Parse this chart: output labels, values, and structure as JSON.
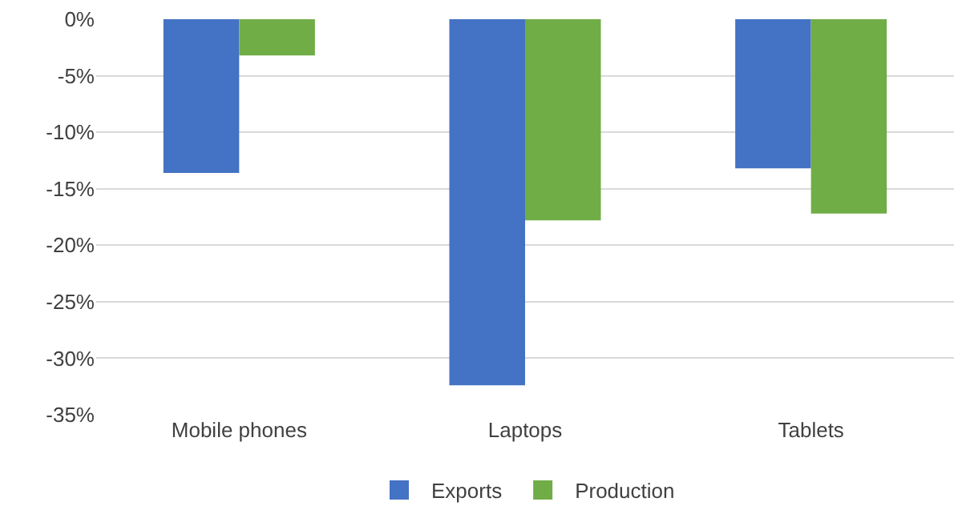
{
  "chart_data": {
    "type": "bar",
    "categories": [
      "Mobile phones",
      "Laptops",
      "Tablets"
    ],
    "series": [
      {
        "name": "Exports",
        "color": "#4472c4",
        "values": [
          -13.6,
          -32.4,
          -13.2
        ]
      },
      {
        "name": "Production",
        "color": "#70ad47",
        "values": [
          -3.2,
          -17.8,
          -17.2
        ]
      }
    ],
    "ylim": [
      -35,
      0
    ],
    "yticks": [
      {
        "value": 0,
        "label": "0%"
      },
      {
        "value": -5,
        "label": "-5%"
      },
      {
        "value": -10,
        "label": "-10%"
      },
      {
        "value": -15,
        "label": "-15%"
      },
      {
        "value": -20,
        "label": "-20%"
      },
      {
        "value": -25,
        "label": "-25%"
      },
      {
        "value": -30,
        "label": "-30%"
      },
      {
        "value": -35,
        "label": "-35%"
      }
    ],
    "grid": "y",
    "legend": "bottom"
  }
}
